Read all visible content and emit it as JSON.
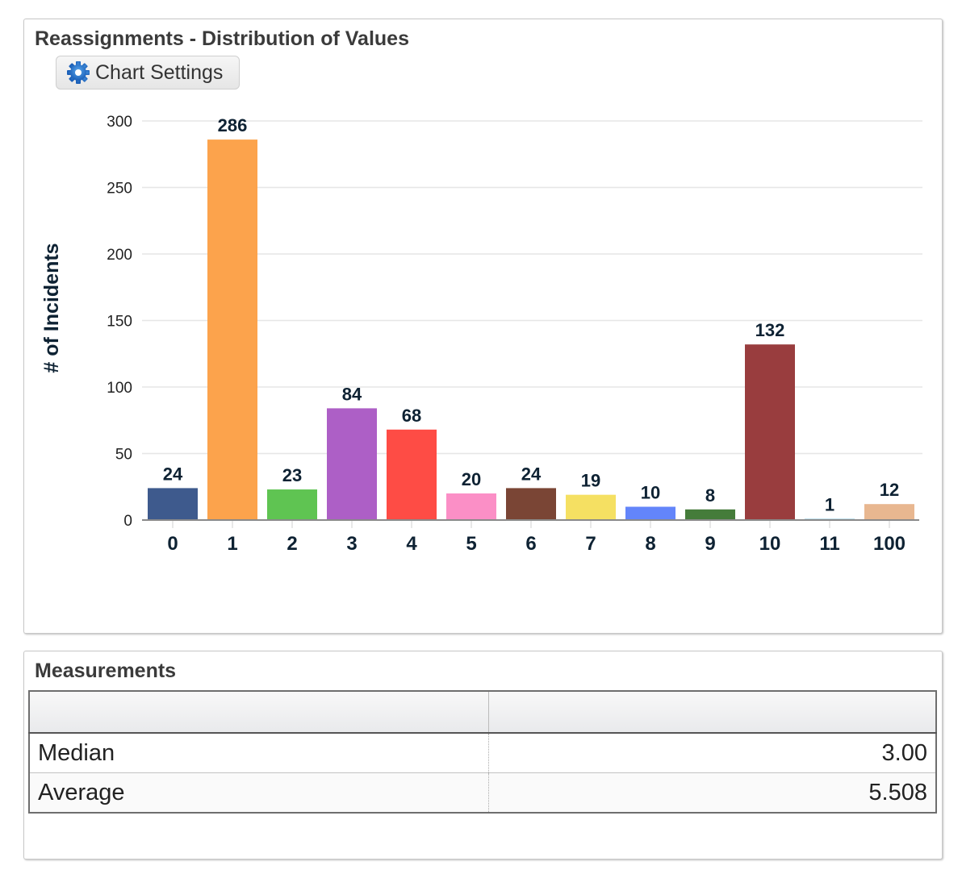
{
  "chart_panel": {
    "title": "Reassignments - Distribution of Values",
    "settings_button_label": "Chart Settings",
    "settings_icon": "gear-icon"
  },
  "chart_data": {
    "type": "bar",
    "title": "Reassignments - Distribution of Values",
    "xlabel": "",
    "ylabel": "# of Incidents",
    "ylim": [
      0,
      300
    ],
    "yticks": [
      0,
      50,
      100,
      150,
      200,
      250,
      300
    ],
    "grid": true,
    "legend": "none",
    "categories": [
      "0",
      "1",
      "2",
      "3",
      "4",
      "5",
      "6",
      "7",
      "8",
      "9",
      "10",
      "11",
      "100"
    ],
    "values": [
      24,
      286,
      23,
      84,
      68,
      20,
      24,
      19,
      10,
      8,
      132,
      1,
      12
    ],
    "colors": [
      "#3e5a8d",
      "#fca34c",
      "#5fc452",
      "#ad5fc6",
      "#fe4c45",
      "#fb8fc6",
      "#7a4535",
      "#f5e062",
      "#6385fa",
      "#457c3a",
      "#993d3e",
      "#9ccde0",
      "#e8b790"
    ]
  },
  "measurements": {
    "title": "Measurements",
    "headers": [
      "",
      ""
    ],
    "rows": [
      {
        "label": "Median",
        "value": "3.00"
      },
      {
        "label": "Average",
        "value": "5.508"
      }
    ]
  }
}
